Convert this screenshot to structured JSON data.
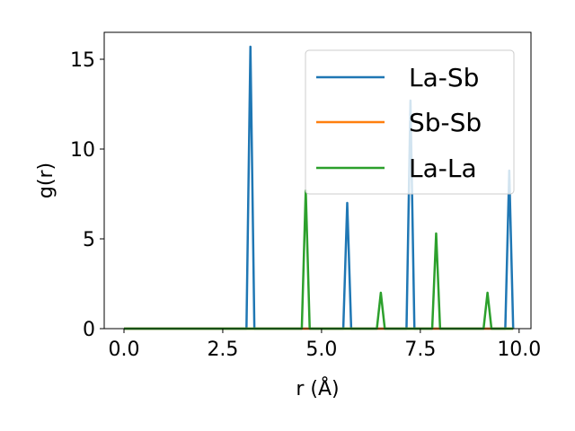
{
  "chart_data": {
    "type": "line",
    "xlabel": "r (Å)",
    "ylabel": "g(r)",
    "xlim": [
      -0.5,
      10.3
    ],
    "ylim": [
      0,
      16.5
    ],
    "xticks": [
      0.0,
      2.5,
      5.0,
      7.5,
      10.0
    ],
    "xtick_labels": [
      "0.0",
      "2.5",
      "5.0",
      "7.5",
      "10.0"
    ],
    "yticks": [
      0,
      5,
      10,
      15
    ],
    "ytick_labels": [
      "0",
      "5",
      "10",
      "15"
    ],
    "grid": false,
    "legend_position": "top-right",
    "series": [
      {
        "name": "La-Sb",
        "color": "#1f77b4",
        "x": [
          0.0,
          3.1,
          3.2,
          3.3,
          5.55,
          5.65,
          5.75,
          7.15,
          7.25,
          7.35,
          9.65,
          9.75,
          9.85
        ],
        "y": [
          0,
          0,
          15.7,
          0,
          0,
          7.0,
          0,
          0,
          12.7,
          0,
          0,
          8.8,
          0
        ]
      },
      {
        "name": "Sb-Sb",
        "color": "#ff7f0e",
        "x": [
          0.0,
          9.85
        ],
        "y": [
          0,
          0
        ]
      },
      {
        "name": "La-La",
        "color": "#2ca02c",
        "x": [
          0.0,
          4.5,
          4.6,
          4.7,
          6.4,
          6.5,
          6.6,
          7.8,
          7.9,
          8.0,
          9.1,
          9.2,
          9.3,
          9.85
        ],
        "y": [
          0,
          0,
          7.7,
          0,
          0,
          2.0,
          0,
          0,
          5.3,
          0,
          0,
          2.0,
          0,
          0
        ]
      }
    ]
  }
}
